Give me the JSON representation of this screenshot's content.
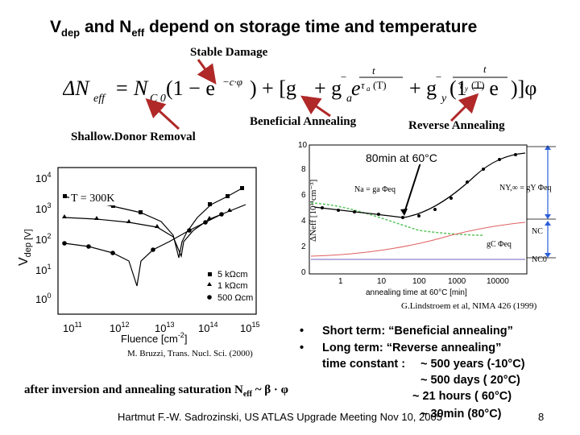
{
  "slide": {
    "title_main_a": "V",
    "title_sub_a": "dep",
    "title_main_b": " and N",
    "title_sub_b": "eff",
    "title_rest": " depend on storage time and temperature",
    "stable_damage": "Stable Damage",
    "shallow_donor": "Shallow.Donor Removal",
    "beneficial": "Beneficial Annealing",
    "reverse": "Reverse Annealing",
    "left_plot": {
      "temp_label": "T = 300K",
      "y_axis_label": "V",
      "y_axis_sub": "dep [V]",
      "y_ticks": [
        "10",
        "10",
        "10",
        "10",
        "10"
      ],
      "y_exps": [
        "0",
        "1",
        "2",
        "3",
        "4"
      ],
      "x_ticks": [
        "10",
        "10",
        "10",
        "10",
        "10"
      ],
      "x_exps": [
        "11",
        "12",
        "13",
        "14",
        "15"
      ],
      "x_label": "Fluence [cm",
      "x_label_exp": "-2",
      "x_label_end": "]",
      "legend": [
        "5 kΩcm",
        "1 kΩcm",
        "500 Ωcm"
      ],
      "citation": "M. Bruzzi, Trans. Nucl. Sci. (2000)"
    },
    "right_plot": {
      "annotation": "80min at 60°C",
      "y_label": "ΔNeff [10¹¹cm⁻³]",
      "y_ticks": [
        "0",
        "2",
        "4",
        "6",
        "8",
        "10"
      ],
      "x_ticks": [
        "1",
        "10",
        "100",
        "1000",
        "10000"
      ],
      "x_label": "annealing time at 60°C [min]",
      "na_label": "Na = ga Φeq",
      "ny_label": "NY,∞ = gY Φeq",
      "nc_label": "NC",
      "gc_label": "gC Φeq",
      "nc0_label": "NC0",
      "citation": "G.Lindstroem et al, NIMA 426 (1999)"
    },
    "bullets": [
      "Short term: “Beneficial annealing”",
      "Long term: “Reverse annealing”"
    ],
    "time_constant_label": "time constant :",
    "time_constants": [
      "~ 500 years (-10°C)",
      "~ 500 days   ( 20°C)",
      "~  21 hours   ( 60°C)",
      "~ 30min (80°C)"
    ],
    "saturation": "after inversion and annealing saturation N",
    "saturation_sub": "eff",
    "saturation_end": " ~ β · φ",
    "footer": "Hartmut F.-W. Sadrozinski, US ATLAS Upgrade Meeting Nov 10, 2005",
    "page_number": "8"
  },
  "colors": {
    "arrow": "#b02828",
    "blue": "#2b5fd9",
    "green": "#56c45a",
    "pink": "#e06060"
  }
}
